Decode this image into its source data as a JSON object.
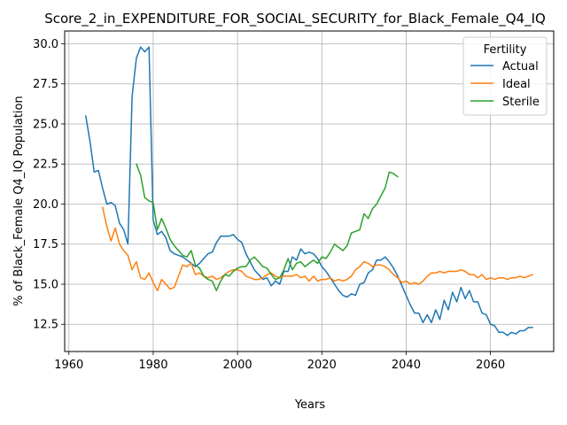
{
  "chart_data": {
    "type": "line",
    "title": "Score_2_in_EXPENDITURE_FOR_SOCIAL_SECURITY_for_Black_Female_Q4_IQ",
    "xlabel": "Years",
    "ylabel": "% of Black_Female Q4_IQ Population",
    "xlim": [
      1959,
      2075
    ],
    "ylim": [
      10.8,
      30.8
    ],
    "xticks": [
      1960,
      1980,
      2000,
      2020,
      2040,
      2060
    ],
    "xtick_labels": [
      "1960",
      "1980",
      "2000",
      "2020",
      "2040",
      "2060"
    ],
    "yticks": [
      12.5,
      15.0,
      17.5,
      20.0,
      22.5,
      25.0,
      27.5,
      30.0
    ],
    "ytick_labels": [
      "12.5",
      "15.0",
      "17.5",
      "20.0",
      "22.5",
      "25.0",
      "27.5",
      "30.0"
    ],
    "grid": true,
    "legend": {
      "title": "Fertility",
      "placement": "top-right"
    },
    "series": [
      {
        "name": "Actual",
        "color": "#1f77b4",
        "x": [
          1964,
          1965,
          1966,
          1967,
          1968,
          1969,
          1970,
          1971,
          1972,
          1973,
          1974,
          1975,
          1976,
          1977,
          1978,
          1979,
          1980,
          1981,
          1982,
          1983,
          1984,
          1985,
          1986,
          1987,
          1988,
          1989,
          1990,
          1991,
          1992,
          1993,
          1994,
          1995,
          1996,
          1997,
          1998,
          1999,
          2000,
          2001,
          2002,
          2003,
          2004,
          2005,
          2006,
          2007,
          2008,
          2009,
          2010,
          2011,
          2012,
          2013,
          2014,
          2015,
          2016,
          2017,
          2018,
          2019,
          2020,
          2021,
          2022,
          2023,
          2024,
          2025,
          2026,
          2027,
          2028,
          2029,
          2030,
          2031,
          2032,
          2033,
          2034,
          2035,
          2036,
          2037,
          2038,
          2039,
          2040,
          2041,
          2042,
          2043,
          2044,
          2045,
          2046,
          2047,
          2048,
          2049,
          2050,
          2051,
          2052,
          2053,
          2054,
          2055,
          2056,
          2057,
          2058,
          2059,
          2060,
          2061,
          2062,
          2063,
          2064,
          2065,
          2066,
          2067,
          2068,
          2069,
          2070
        ],
        "values": [
          25.5,
          23.9,
          22.0,
          22.1,
          21.0,
          20.0,
          20.1,
          19.9,
          18.8,
          18.4,
          17.5,
          26.7,
          29.1,
          29.8,
          29.5,
          29.8,
          19.0,
          18.1,
          18.3,
          17.9,
          17.1,
          16.9,
          16.8,
          16.7,
          16.5,
          16.3,
          16.1,
          16.3,
          16.6,
          16.9,
          17.0,
          17.6,
          18.0,
          18.0,
          18.0,
          18.1,
          17.8,
          17.6,
          16.9,
          16.4,
          15.9,
          15.6,
          15.3,
          15.4,
          14.9,
          15.2,
          15.0,
          15.8,
          15.8,
          16.7,
          16.5,
          17.2,
          16.9,
          17.0,
          16.9,
          16.6,
          16.1,
          15.8,
          15.4,
          15.0,
          14.6,
          14.3,
          14.2,
          14.4,
          14.3,
          15.0,
          15.1,
          15.7,
          15.9,
          16.5,
          16.5,
          16.7,
          16.4,
          16.0,
          15.5,
          14.9,
          14.3,
          13.7,
          13.2,
          13.2,
          12.6,
          13.1,
          12.6,
          13.4,
          12.8,
          14.0,
          13.4,
          14.5,
          13.9,
          14.8,
          14.1,
          14.6,
          13.9,
          13.9,
          13.2,
          13.1,
          12.5,
          12.4,
          12.0,
          12.0,
          11.8,
          12.0,
          11.9,
          12.1,
          12.1,
          12.3,
          12.3
        ]
      },
      {
        "name": "Ideal",
        "color": "#ff7f0e",
        "x": [
          1968,
          1969,
          1970,
          1971,
          1972,
          1973,
          1974,
          1975,
          1976,
          1977,
          1978,
          1979,
          1980,
          1981,
          1982,
          1983,
          1984,
          1985,
          1986,
          1987,
          1988,
          1989,
          1990,
          1991,
          1992,
          1993,
          1994,
          1995,
          1996,
          1997,
          1998,
          1999,
          2000,
          2001,
          2002,
          2003,
          2004,
          2005,
          2006,
          2007,
          2008,
          2009,
          2010,
          2011,
          2012,
          2013,
          2014,
          2015,
          2016,
          2017,
          2018,
          2019,
          2020,
          2021,
          2022,
          2023,
          2024,
          2025,
          2026,
          2027,
          2028,
          2029,
          2030,
          2031,
          2032,
          2033,
          2034,
          2035,
          2036,
          2037,
          2038,
          2039,
          2040,
          2041,
          2042,
          2043,
          2044,
          2045,
          2046,
          2047,
          2048,
          2049,
          2050,
          2051,
          2052,
          2053,
          2054,
          2055,
          2056,
          2057,
          2058,
          2059,
          2060,
          2061,
          2062,
          2063,
          2064,
          2065,
          2066,
          2067,
          2068,
          2069,
          2070
        ],
        "values": [
          19.8,
          18.6,
          17.7,
          18.5,
          17.5,
          17.1,
          16.8,
          15.9,
          16.4,
          15.4,
          15.3,
          15.7,
          15.1,
          14.6,
          15.3,
          15.0,
          14.7,
          14.8,
          15.5,
          16.2,
          16.1,
          16.3,
          15.6,
          15.7,
          15.5,
          15.4,
          15.5,
          15.3,
          15.4,
          15.6,
          15.8,
          15.9,
          15.9,
          15.8,
          15.5,
          15.4,
          15.3,
          15.3,
          15.4,
          15.6,
          15.7,
          15.5,
          15.4,
          15.5,
          15.5,
          15.5,
          15.6,
          15.4,
          15.5,
          15.2,
          15.5,
          15.2,
          15.3,
          15.3,
          15.4,
          15.2,
          15.3,
          15.2,
          15.3,
          15.5,
          15.9,
          16.1,
          16.4,
          16.3,
          16.1,
          16.2,
          16.2,
          16.1,
          15.9,
          15.6,
          15.4,
          15.1,
          15.2,
          15.0,
          15.1,
          15.0,
          15.2,
          15.5,
          15.7,
          15.7,
          15.8,
          15.7,
          15.8,
          15.8,
          15.8,
          15.9,
          15.8,
          15.6,
          15.6,
          15.4,
          15.6,
          15.3,
          15.4,
          15.3,
          15.4,
          15.4,
          15.3,
          15.4,
          15.4,
          15.5,
          15.4,
          15.5,
          15.6
        ]
      },
      {
        "name": "Sterile",
        "color": "#2ca02c",
        "x": [
          1976,
          1977,
          1978,
          1979,
          1980,
          1981,
          1982,
          1983,
          1984,
          1985,
          1986,
          1987,
          1988,
          1989,
          1990,
          1991,
          1992,
          1993,
          1994,
          1995,
          1996,
          1997,
          1998,
          1999,
          2000,
          2001,
          2002,
          2003,
          2004,
          2005,
          2006,
          2007,
          2008,
          2009,
          2010,
          2011,
          2012,
          2013,
          2014,
          2015,
          2016,
          2017,
          2018,
          2019,
          2020,
          2021,
          2022,
          2023,
          2024,
          2025,
          2026,
          2027,
          2028,
          2029,
          2030,
          2031,
          2032,
          2033,
          2034,
          2035,
          2036,
          2037,
          2038
        ],
        "values": [
          22.5,
          21.8,
          20.4,
          20.2,
          20.1,
          18.4,
          19.1,
          18.5,
          17.8,
          17.4,
          17.1,
          16.8,
          16.7,
          17.1,
          16.2,
          16.0,
          15.5,
          15.3,
          15.2,
          14.6,
          15.2,
          15.6,
          15.5,
          15.8,
          16.0,
          16.1,
          16.1,
          16.5,
          16.7,
          16.4,
          16.1,
          16.0,
          15.6,
          15.3,
          15.4,
          15.9,
          16.6,
          15.9,
          16.3,
          16.4,
          16.1,
          16.3,
          16.5,
          16.3,
          16.7,
          16.6,
          17.0,
          17.5,
          17.3,
          17.1,
          17.4,
          18.2,
          18.3,
          18.4,
          19.4,
          19.1,
          19.7,
          20.0,
          20.5,
          21.0,
          22.0,
          21.9,
          21.7
        ]
      }
    ]
  }
}
